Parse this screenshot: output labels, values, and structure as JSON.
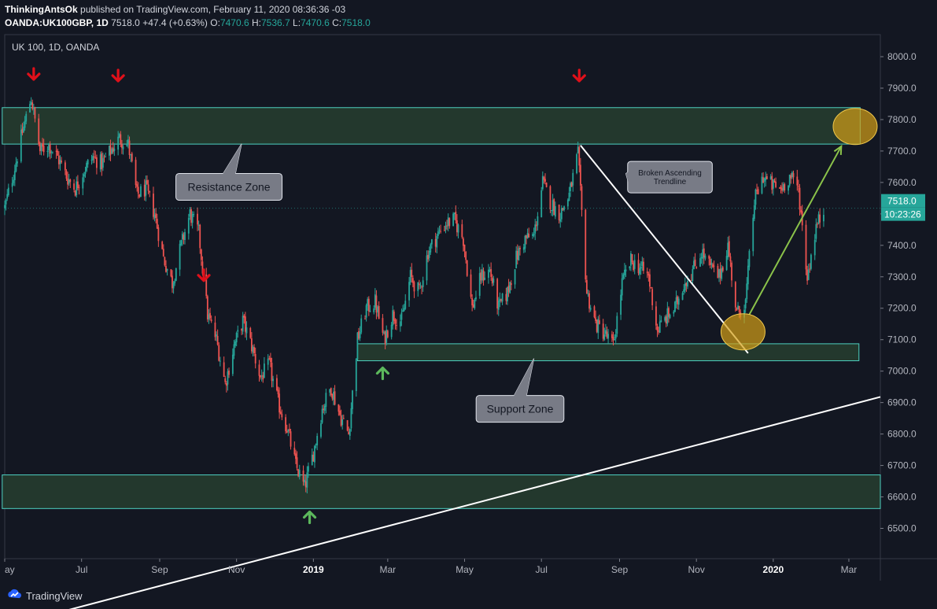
{
  "header": {
    "publisher": "ThinkingAntsOk",
    "published_text": "published on TradingView.com, February 11, 2020 08:36:36 -03",
    "symbol": "OANDA:UK100GBP, 1D",
    "last": "7518.0",
    "change": "+47.4 (+0.63%)",
    "o_label": "O:",
    "o_value": "7470.6",
    "h_label": "H:",
    "h_value": "7536.7",
    "l_label": "L:",
    "l_value": "7470.6",
    "c_label": "C:",
    "c_value": "7518.0"
  },
  "footer": {
    "brand": "TradingView",
    "logo_icon": "tradingview-logo-icon"
  },
  "chart_data": {
    "type": "candlestick",
    "title": "UK 100, 1D, OANDA",
    "price_axis": {
      "range": [
        6400,
        8050
      ],
      "ticks": [
        "8000.0",
        "7900.0",
        "7800.0",
        "7700.0",
        "7600.0",
        "7500.0",
        "7400.0",
        "7300.0",
        "7200.0",
        "7100.0",
        "7000.0",
        "6900.0",
        "6800.0",
        "6700.0",
        "6600.0",
        "6500.0"
      ]
    },
    "time_axis": {
      "range": [
        "2018-05-01",
        "2020-03-26"
      ],
      "ticks": [
        {
          "label": "ay",
          "date": "2018-05-01",
          "bold": false
        },
        {
          "label": "Jul",
          "date": "2018-07-01",
          "bold": false
        },
        {
          "label": "Sep",
          "date": "2018-09-01",
          "bold": false
        },
        {
          "label": "Nov",
          "date": "2018-11-01",
          "bold": false
        },
        {
          "label": "2019",
          "date": "2019-01-01",
          "bold": true
        },
        {
          "label": "Mar",
          "date": "2019-03-01",
          "bold": false
        },
        {
          "label": "May",
          "date": "2019-05-01",
          "bold": false
        },
        {
          "label": "Jul",
          "date": "2019-07-01",
          "bold": false
        },
        {
          "label": "Sep",
          "date": "2019-09-01",
          "bold": false
        },
        {
          "label": "Nov",
          "date": "2019-11-01",
          "bold": false
        },
        {
          "label": "2020",
          "date": "2020-01-01",
          "bold": true
        },
        {
          "label": "Mar",
          "date": "2020-03-01",
          "bold": false
        }
      ]
    },
    "last_price_label": "7518.0",
    "countdown_label": "10:23:26",
    "close_path": [
      [
        "2018-05-01",
        7520
      ],
      [
        "2018-05-08",
        7630
      ],
      [
        "2018-05-15",
        7760
      ],
      [
        "2018-05-22",
        7870
      ],
      [
        "2018-05-29",
        7700
      ],
      [
        "2018-06-05",
        7720
      ],
      [
        "2018-06-12",
        7680
      ],
      [
        "2018-06-19",
        7620
      ],
      [
        "2018-06-26",
        7580
      ],
      [
        "2018-07-03",
        7640
      ],
      [
        "2018-07-10",
        7680
      ],
      [
        "2018-07-17",
        7660
      ],
      [
        "2018-07-24",
        7700
      ],
      [
        "2018-07-31",
        7740
      ],
      [
        "2018-08-07",
        7720
      ],
      [
        "2018-08-14",
        7560
      ],
      [
        "2018-08-21",
        7580
      ],
      [
        "2018-08-28",
        7500
      ],
      [
        "2018-09-04",
        7360
      ],
      [
        "2018-09-11",
        7280
      ],
      [
        "2018-09-18",
        7400
      ],
      [
        "2018-09-25",
        7500
      ],
      [
        "2018-10-02",
        7440
      ],
      [
        "2018-10-09",
        7180
      ],
      [
        "2018-10-16",
        7100
      ],
      [
        "2018-10-23",
        6960
      ],
      [
        "2018-10-30",
        7080
      ],
      [
        "2018-11-06",
        7160
      ],
      [
        "2018-11-13",
        7080
      ],
      [
        "2018-11-20",
        6980
      ],
      [
        "2018-11-27",
        7020
      ],
      [
        "2018-12-04",
        6900
      ],
      [
        "2018-12-11",
        6820
      ],
      [
        "2018-12-18",
        6700
      ],
      [
        "2018-12-25",
        6630
      ],
      [
        "2019-01-01",
        6740
      ],
      [
        "2019-01-08",
        6880
      ],
      [
        "2019-01-15",
        6950
      ],
      [
        "2019-01-22",
        6860
      ],
      [
        "2019-01-29",
        6800
      ],
      [
        "2019-02-05",
        7100
      ],
      [
        "2019-02-12",
        7200
      ],
      [
        "2019-02-19",
        7220
      ],
      [
        "2019-02-26",
        7100
      ],
      [
        "2019-03-05",
        7180
      ],
      [
        "2019-03-12",
        7160
      ],
      [
        "2019-03-19",
        7300
      ],
      [
        "2019-03-26",
        7250
      ],
      [
        "2019-04-02",
        7380
      ],
      [
        "2019-04-09",
        7430
      ],
      [
        "2019-04-16",
        7470
      ],
      [
        "2019-04-23",
        7480
      ],
      [
        "2019-04-30",
        7420
      ],
      [
        "2019-05-07",
        7200
      ],
      [
        "2019-05-14",
        7300
      ],
      [
        "2019-05-21",
        7320
      ],
      [
        "2019-05-28",
        7200
      ],
      [
        "2019-06-04",
        7250
      ],
      [
        "2019-06-11",
        7360
      ],
      [
        "2019-06-18",
        7420
      ],
      [
        "2019-06-25",
        7430
      ],
      [
        "2019-07-02",
        7600
      ],
      [
        "2019-07-09",
        7530
      ],
      [
        "2019-07-16",
        7500
      ],
      [
        "2019-07-23",
        7560
      ],
      [
        "2019-07-30",
        7690
      ],
      [
        "2019-08-06",
        7250
      ],
      [
        "2019-08-13",
        7150
      ],
      [
        "2019-08-20",
        7120
      ],
      [
        "2019-08-27",
        7080
      ],
      [
        "2019-09-03",
        7280
      ],
      [
        "2019-09-10",
        7350
      ],
      [
        "2019-09-17",
        7330
      ],
      [
        "2019-09-24",
        7300
      ],
      [
        "2019-10-01",
        7130
      ],
      [
        "2019-10-08",
        7170
      ],
      [
        "2019-10-15",
        7200
      ],
      [
        "2019-10-22",
        7280
      ],
      [
        "2019-10-29",
        7320
      ],
      [
        "2019-11-05",
        7380
      ],
      [
        "2019-11-12",
        7330
      ],
      [
        "2019-11-19",
        7300
      ],
      [
        "2019-11-26",
        7400
      ],
      [
        "2019-12-03",
        7180
      ],
      [
        "2019-12-10",
        7220
      ],
      [
        "2019-12-17",
        7540
      ],
      [
        "2019-12-24",
        7620
      ],
      [
        "2019-12-31",
        7590
      ],
      [
        "2020-01-07",
        7580
      ],
      [
        "2020-01-14",
        7620
      ],
      [
        "2020-01-21",
        7580
      ],
      [
        "2020-01-28",
        7300
      ],
      [
        "2020-02-04",
        7460
      ],
      [
        "2020-02-11",
        7518
      ]
    ],
    "zones": [
      {
        "name": "resistance-zone",
        "low": 7722,
        "high": 7838,
        "start": "2018-04-29",
        "end": "2020-03-10"
      },
      {
        "name": "support-zone",
        "low": 7033,
        "high": 7087,
        "start": "2019-02-05",
        "end": "2020-03-09"
      },
      {
        "name": "lower-zone",
        "low": 6563,
        "high": 6670,
        "start": "2018-04-29",
        "end": "2020-03-26"
      }
    ],
    "lines": [
      {
        "name": "long-term-trendline",
        "from": [
          "2018-06-20",
          6240
        ],
        "to": [
          "2020-03-26",
          6918
        ],
        "color": "#ffffff"
      },
      {
        "name": "broken-trendline",
        "from": [
          "2019-08-01",
          7718
        ],
        "to": [
          "2019-12-12",
          7057
        ],
        "color": "#ffffff"
      },
      {
        "name": "target-arrow",
        "from": [
          "2019-12-13",
          7180
        ],
        "to": [
          "2020-02-24",
          7715
        ],
        "color": "#8bc34a"
      }
    ],
    "ellipses": [
      {
        "name": "breakout-circle",
        "date": "2019-12-08",
        "price": 7125
      },
      {
        "name": "target-circle",
        "date": "2020-03-06",
        "price": 7778
      }
    ],
    "down_arrows": [
      {
        "date": "2018-05-24",
        "price": 7940
      },
      {
        "date": "2018-07-30",
        "price": 7935
      },
      {
        "date": "2018-10-06",
        "price": 7300
      },
      {
        "date": "2019-07-31",
        "price": 7935
      }
    ],
    "up_arrows": [
      {
        "date": "2019-02-25",
        "price": 6998
      },
      {
        "date": "2018-12-29",
        "price": 6540
      }
    ],
    "callouts": [
      {
        "name": "resistance-callout",
        "text": [
          "Resistance Zone"
        ],
        "date": "2018-10-26",
        "price": 7586,
        "pointer_date": "2018-11-05",
        "pointer_price": 7723
      },
      {
        "name": "support-callout",
        "text": [
          "Support Zone"
        ],
        "date": "2019-06-14",
        "price": 6880,
        "pointer_date": "2019-06-25",
        "pointer_price": 7040
      },
      {
        "name": "trendline-callout",
        "text": [
          "Broken Ascending",
          "Trendline"
        ],
        "date": "2019-10-11",
        "price": 7617,
        "pointer_date": "2019-09-06",
        "pointer_price": 7628
      }
    ]
  }
}
